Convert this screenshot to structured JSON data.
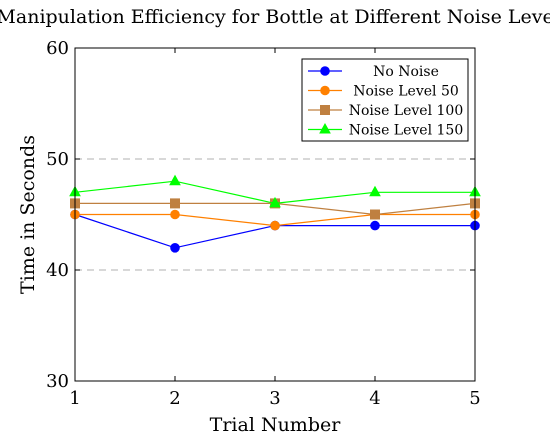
{
  "chart_data": {
    "type": "line",
    "title": "Manipulation Efficiency for Bottle at Different Noise Levels",
    "xlabel": "Trial Number",
    "ylabel": "Time in Seconds",
    "x": [
      1,
      2,
      3,
      4,
      5
    ],
    "xlim": [
      1,
      5
    ],
    "ylim": [
      30,
      60
    ],
    "yticks": [
      30,
      40,
      50,
      60
    ],
    "grid": "horizontal dashed at 40 and 50",
    "legend_position": "top-right",
    "series": [
      {
        "name": "No Noise",
        "values": [
          45,
          42,
          44,
          44,
          44
        ],
        "color": "#0000ff",
        "marker": "circle"
      },
      {
        "name": "Noise Level 50",
        "values": [
          45,
          45,
          44,
          45,
          45
        ],
        "color": "#ff8000",
        "marker": "circle"
      },
      {
        "name": "Noise Level 100",
        "values": [
          46,
          46,
          46,
          45,
          46
        ],
        "color": "#bf8040",
        "marker": "square"
      },
      {
        "name": "Noise Level 150",
        "values": [
          47,
          48,
          46,
          47,
          47
        ],
        "color": "#00ff00",
        "marker": "triangle"
      }
    ]
  }
}
